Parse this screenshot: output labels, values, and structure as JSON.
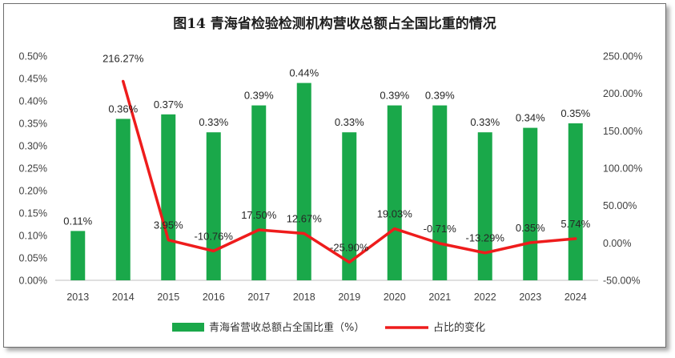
{
  "chart_data": {
    "type": "bar+line",
    "title": "图14  青海省检验检测机构营收总额占全国比重的情况",
    "categories": [
      "2013",
      "2014",
      "2015",
      "2016",
      "2017",
      "2018",
      "2019",
      "2020",
      "2021",
      "2022",
      "2023",
      "2024"
    ],
    "series": [
      {
        "name": "青海省营收总额占全国比重（%）",
        "type": "bar",
        "axis": "left",
        "color": "#1aa84a",
        "values": [
          0.11,
          0.36,
          0.37,
          0.33,
          0.39,
          0.44,
          0.33,
          0.39,
          0.39,
          0.33,
          0.34,
          0.35
        ],
        "labels": [
          "0.11%",
          "0.36%",
          "0.37%",
          "0.33%",
          "0.39%",
          "0.44%",
          "0.33%",
          "0.39%",
          "0.39%",
          "0.33%",
          "0.34%",
          "0.35%"
        ]
      },
      {
        "name": "占比的变化",
        "type": "line",
        "axis": "right",
        "color": "#ee1c1c",
        "values": [
          null,
          216.27,
          3.95,
          -10.76,
          17.5,
          12.67,
          -25.9,
          19.03,
          -0.71,
          -13.29,
          0.35,
          5.74
        ],
        "labels": [
          "",
          "216.27%",
          "3.95%",
          "-10.76%",
          "17.50%",
          "12.67%",
          "-25.90%",
          "19.03%",
          "-0.71%",
          "-13.29%",
          "0.35%",
          "5.74%"
        ]
      }
    ],
    "y_left": {
      "min": 0,
      "max": 0.5,
      "ticks": [
        0,
        0.05,
        0.1,
        0.15,
        0.2,
        0.25,
        0.3,
        0.35,
        0.4,
        0.45,
        0.5
      ],
      "tick_labels": [
        "0.00%",
        "0.05%",
        "0.10%",
        "0.15%",
        "0.20%",
        "0.25%",
        "0.30%",
        "0.35%",
        "0.40%",
        "0.45%",
        "0.50%"
      ]
    },
    "y_right": {
      "min": -50,
      "max": 250,
      "ticks": [
        -50,
        0,
        50,
        100,
        150,
        200,
        250
      ],
      "tick_labels": [
        "-50.00%",
        "0.00%",
        "50.00%",
        "100.00%",
        "150.00%",
        "200.00%",
        "250.00%"
      ]
    },
    "grid": false,
    "legend_position": "bottom"
  }
}
